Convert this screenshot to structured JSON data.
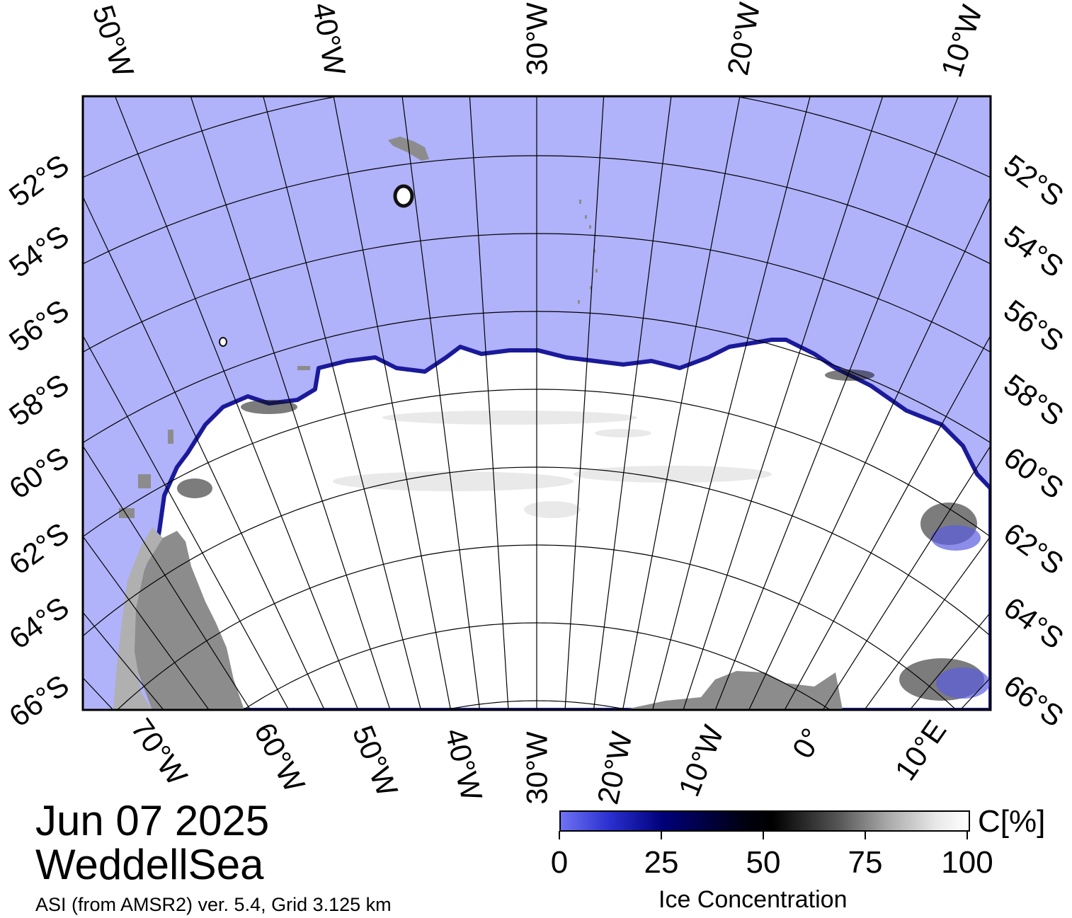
{
  "date": "Jun 07 2025",
  "region": "WeddellSea",
  "source_note": "ASI (from AMSR2) ver. 5.4,  Grid 3.125 km",
  "colorbar": {
    "unit": "C[%]",
    "title": "Ice Concentration",
    "ticks": [
      "0",
      "25",
      "50",
      "75",
      "100"
    ]
  },
  "top_lon_labels": [
    "50°W",
    "40°W",
    "30°W",
    "20°W",
    "10°W"
  ],
  "bottom_lon_labels": [
    "70°W",
    "60°W",
    "50°W",
    "40°W",
    "30°W",
    "20°W",
    "10°W",
    "0°",
    "10°E"
  ],
  "left_lat_labels": [
    "52°S",
    "54°S",
    "56°S",
    "58°S",
    "60°S",
    "62°S",
    "64°S",
    "66°S"
  ],
  "right_lat_labels": [
    "52°S",
    "54°S",
    "56°S",
    "58°S",
    "60°S",
    "62°S",
    "64°S",
    "66°S"
  ],
  "colors": {
    "open_water": "#b0b2fa",
    "sea_ice": "#ffffff",
    "land": "#8c8c8c",
    "ice_edge": "#1a1a9a"
  }
}
